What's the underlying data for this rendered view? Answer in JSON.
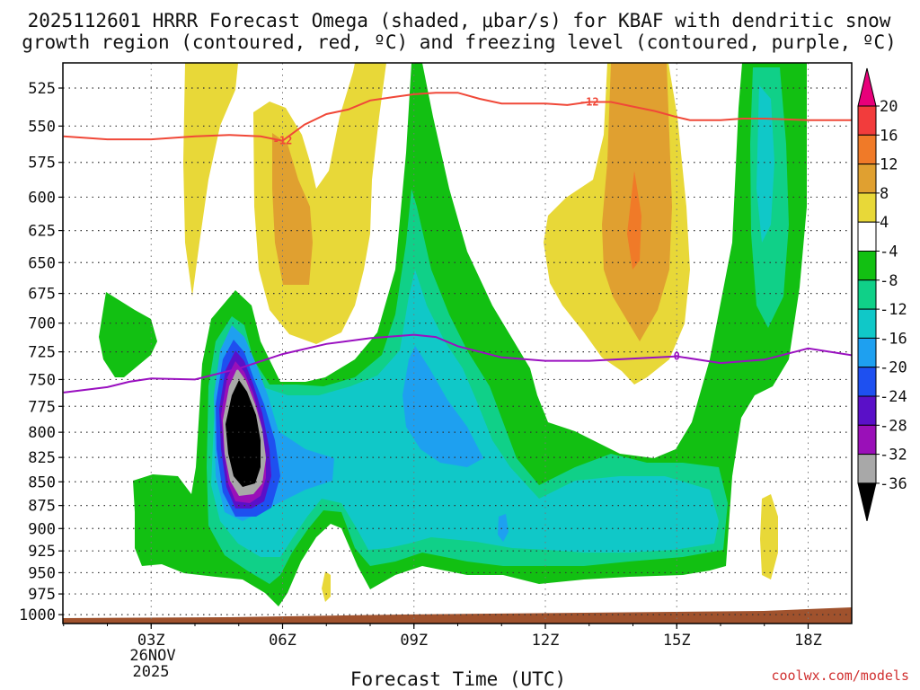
{
  "chart_data": {
    "type": "contour",
    "title_line1": "2025112601 HRRR Forecast Omega (shaded, μbar/s) for KBAF with dendritic snow",
    "title_line2": "growth region (contoured, red, ºC) and freezing level (contoured, purple, ºC)",
    "xlabel": "Forecast Time (UTC)",
    "date_label_1": "26NOV",
    "date_label_2": "2025",
    "credit": "coolwx.com/models",
    "x_range_hours": [
      1,
      19
    ],
    "x_ticks": [
      {
        "hour": 3,
        "label": "03Z"
      },
      {
        "hour": 6,
        "label": "06Z"
      },
      {
        "hour": 9,
        "label": "09Z"
      },
      {
        "hour": 12,
        "label": "12Z"
      },
      {
        "hour": 15,
        "label": "15Z"
      },
      {
        "hour": 18,
        "label": "18Z"
      }
    ],
    "y_ticks_hpa": [
      "525",
      "550",
      "575",
      "600",
      "625",
      "650",
      "675",
      "700",
      "725",
      "750",
      "775",
      "800",
      "825",
      "850",
      "875",
      "900",
      "925",
      "950",
      "975",
      "1000"
    ],
    "colorbar": {
      "labels": [
        "20",
        "16",
        "12",
        "8",
        "4",
        "-4",
        "-8",
        "-12",
        "-16",
        "-20",
        "-24",
        "-28",
        "-32",
        "-36"
      ],
      "colors": [
        "#e8007a",
        "#f23c3c",
        "#f07a28",
        "#e0a030",
        "#e8d838",
        "#ffffff",
        "#12c012",
        "#10d088",
        "#10c8c8",
        "#1ea0f0",
        "#1e50f0",
        "#5a10c8",
        "#9a10b8",
        "#a8a8a8",
        "#000000"
      ]
    },
    "contours": [
      {
        "name": "dendritic -12C isotherm",
        "color": "#f04838",
        "label": "-12",
        "points": [
          [
            1,
            557
          ],
          [
            2,
            559
          ],
          [
            3,
            559
          ],
          [
            4,
            557
          ],
          [
            4.8,
            556
          ],
          [
            5.5,
            557
          ],
          [
            6,
            560
          ],
          [
            6.5,
            549
          ],
          [
            7,
            542
          ],
          [
            7.5,
            539
          ],
          [
            8,
            533
          ],
          [
            8.5,
            531
          ],
          [
            9,
            529
          ],
          [
            9.5,
            528
          ],
          [
            10,
            528
          ],
          [
            10.5,
            532
          ],
          [
            11,
            535
          ],
          [
            12,
            535
          ],
          [
            12.5,
            536
          ],
          [
            13,
            534
          ],
          [
            13.5,
            534
          ],
          [
            14,
            537
          ],
          [
            14.5,
            540
          ],
          [
            15,
            544
          ],
          [
            15.3,
            546
          ],
          [
            16,
            546
          ],
          [
            16.5,
            545
          ],
          [
            17,
            545
          ],
          [
            18,
            546
          ],
          [
            19,
            546
          ]
        ]
      },
      {
        "name": "freezing level 0C",
        "color": "#9a10c0",
        "label": "0",
        "points": [
          [
            1,
            762
          ],
          [
            2,
            757
          ],
          [
            2.5,
            752
          ],
          [
            3,
            749
          ],
          [
            4,
            750
          ],
          [
            5,
            740
          ],
          [
            6,
            727
          ],
          [
            7,
            718
          ],
          [
            8,
            713
          ],
          [
            9,
            710
          ],
          [
            9.5,
            712
          ],
          [
            10,
            720
          ],
          [
            11,
            730
          ],
          [
            12,
            733
          ],
          [
            13,
            733
          ],
          [
            14,
            731
          ],
          [
            15,
            729
          ],
          [
            16,
            735
          ],
          [
            17,
            732
          ],
          [
            18,
            722
          ],
          [
            19,
            728
          ]
        ]
      }
    ]
  }
}
